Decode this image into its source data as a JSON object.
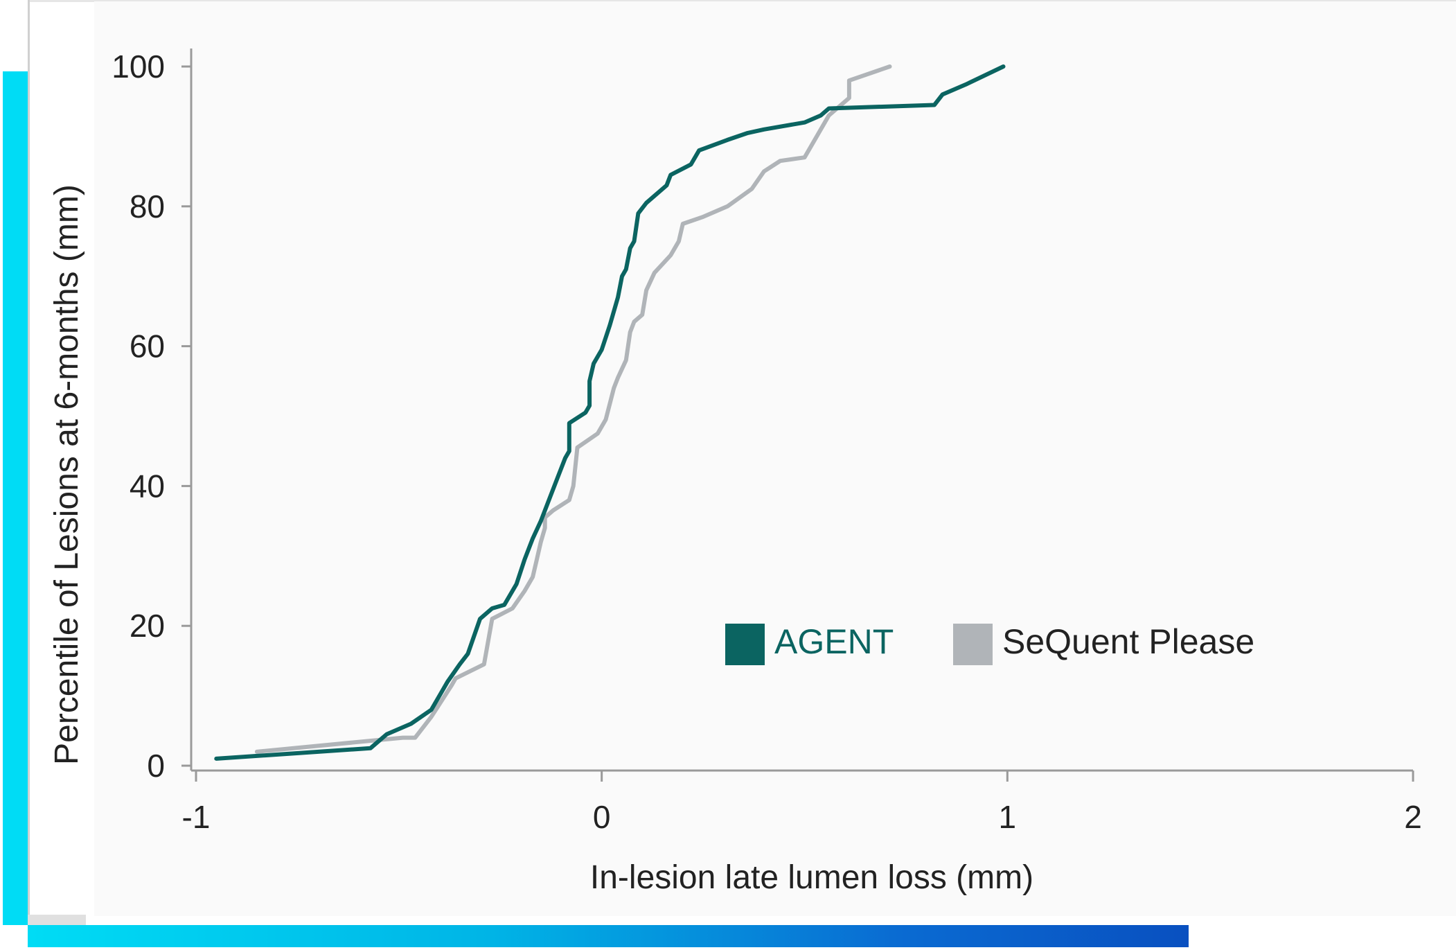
{
  "chart_data": {
    "type": "line",
    "title": "",
    "xlabel": "In-lesion late lumen loss (mm)",
    "ylabel": "Percentile of Lesions at 6-months (mm)",
    "xlim": [
      -1,
      2
    ],
    "ylim": [
      0,
      100
    ],
    "x_ticks": [
      "-1",
      "0",
      "1",
      "2"
    ],
    "y_ticks": [
      "0",
      "20",
      "40",
      "60",
      "80",
      "100"
    ],
    "grid": false,
    "legend_position": "bottom-right",
    "series": [
      {
        "name": "AGENT",
        "color": "#0b6461",
        "points": [
          [
            -0.95,
            1
          ],
          [
            -0.57,
            2.5
          ],
          [
            -0.53,
            4.5
          ],
          [
            -0.47,
            6
          ],
          [
            -0.42,
            8
          ],
          [
            -0.38,
            12
          ],
          [
            -0.35,
            14.5
          ],
          [
            -0.33,
            16
          ],
          [
            -0.3,
            21
          ],
          [
            -0.27,
            22.5
          ],
          [
            -0.24,
            23
          ],
          [
            -0.21,
            26
          ],
          [
            -0.19,
            29.5
          ],
          [
            -0.17,
            32.5
          ],
          [
            -0.15,
            35
          ],
          [
            -0.13,
            38
          ],
          [
            -0.11,
            41
          ],
          [
            -0.09,
            44
          ],
          [
            -0.08,
            45
          ],
          [
            -0.08,
            49
          ],
          [
            -0.04,
            50.5
          ],
          [
            -0.03,
            51.5
          ],
          [
            -0.03,
            55
          ],
          [
            -0.02,
            57.5
          ],
          [
            0.0,
            59.5
          ],
          [
            0.02,
            63
          ],
          [
            0.04,
            67
          ],
          [
            0.05,
            70
          ],
          [
            0.06,
            71
          ],
          [
            0.07,
            74
          ],
          [
            0.08,
            75
          ],
          [
            0.09,
            79
          ],
          [
            0.11,
            80.5
          ],
          [
            0.13,
            81.5
          ],
          [
            0.16,
            83
          ],
          [
            0.17,
            84.5
          ],
          [
            0.22,
            86
          ],
          [
            0.24,
            88
          ],
          [
            0.31,
            89.5
          ],
          [
            0.36,
            90.5
          ],
          [
            0.4,
            91
          ],
          [
            0.5,
            92
          ],
          [
            0.54,
            93
          ],
          [
            0.56,
            94
          ],
          [
            0.82,
            94.5
          ],
          [
            0.84,
            96
          ],
          [
            0.9,
            97.5
          ],
          [
            0.99,
            100
          ]
        ]
      },
      {
        "name": "SeQuent Please",
        "color": "#b0b4b8",
        "points": [
          [
            -0.85,
            2
          ],
          [
            -0.49,
            4
          ],
          [
            -0.46,
            4
          ],
          [
            -0.42,
            7
          ],
          [
            -0.37,
            11.5
          ],
          [
            -0.36,
            12.5
          ],
          [
            -0.29,
            14.5
          ],
          [
            -0.27,
            21
          ],
          [
            -0.22,
            22.5
          ],
          [
            -0.19,
            25
          ],
          [
            -0.17,
            27
          ],
          [
            -0.16,
            29.5
          ],
          [
            -0.15,
            32
          ],
          [
            -0.14,
            34
          ],
          [
            -0.14,
            35.5
          ],
          [
            -0.12,
            36.5
          ],
          [
            -0.08,
            38
          ],
          [
            -0.07,
            40
          ],
          [
            -0.06,
            45.5
          ],
          [
            -0.01,
            47.5
          ],
          [
            0.01,
            49.5
          ],
          [
            0.03,
            54
          ],
          [
            0.04,
            55.5
          ],
          [
            0.06,
            58
          ],
          [
            0.07,
            62
          ],
          [
            0.08,
            63.5
          ],
          [
            0.1,
            64.5
          ],
          [
            0.11,
            68
          ],
          [
            0.13,
            70.5
          ],
          [
            0.17,
            73
          ],
          [
            0.19,
            75
          ],
          [
            0.2,
            77.5
          ],
          [
            0.25,
            78.5
          ],
          [
            0.31,
            80
          ],
          [
            0.37,
            82.5
          ],
          [
            0.4,
            85
          ],
          [
            0.44,
            86.5
          ],
          [
            0.5,
            87
          ],
          [
            0.53,
            90
          ],
          [
            0.56,
            93
          ],
          [
            0.61,
            95.5
          ],
          [
            0.61,
            98
          ],
          [
            0.71,
            100
          ]
        ]
      }
    ]
  }
}
